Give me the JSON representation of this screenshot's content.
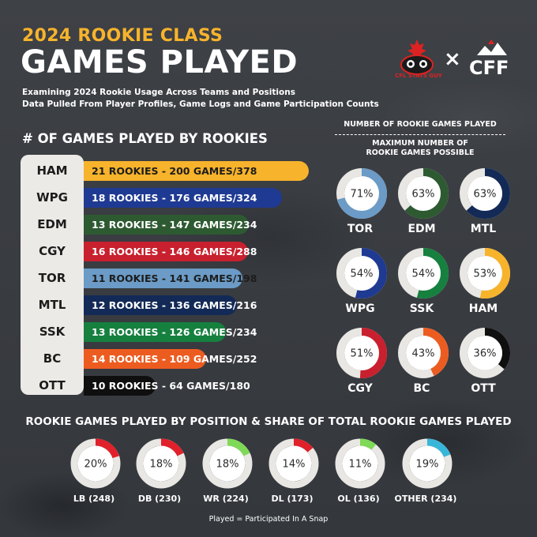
{
  "header": {
    "subtitle": "2024 ROOKIE CLASS",
    "title": "GAMES PLAYED",
    "desc_line1": "Examining 2024 Rookie Usage Across Teams and Positions",
    "desc_line2": "Data Pulled From Player Profiles, Game Logs and Game Participation Counts"
  },
  "logos": {
    "left_text": "CFL STATS GUY",
    "separator": "×",
    "right_text": "CFF"
  },
  "bar_section_title": "# OF GAMES PLAYED BY ROOKIES",
  "right_header": {
    "line1": "NUMBER OF ROOKIE GAMES PLAYED",
    "line2a": "MAXIMUM NUMBER OF",
    "line2b": "ROOKIE GAMES POSSIBLE"
  },
  "position_section_title": "ROOKIE GAMES PLAYED BY POSITION & SHARE OF TOTAL ROOKIE GAMES PLAYED",
  "footnote": "Played = Participated In A Snap",
  "colors": {
    "HAM": "#f7b32b",
    "WPG": "#1f3a93",
    "EDM": "#2e5a32",
    "CGY": "#c8202e",
    "TOR": "#6b9bc6",
    "MTL": "#132a57",
    "SSK": "#16803f",
    "BC": "#ec5c20",
    "OTT": "#0f0f0f",
    "ring_bg": "#e9e7e3",
    "pos_ring_bg": "#e9e7e3"
  },
  "chart_data": [
    {
      "type": "bar",
      "orientation": "horizontal",
      "title": "# OF GAMES PLAYED BY ROOKIES",
      "categories": [
        "HAM",
        "WPG",
        "EDM",
        "CGY",
        "TOR",
        "MTL",
        "SSK",
        "BC",
        "OTT"
      ],
      "values": [
        200,
        176,
        147,
        146,
        141,
        136,
        126,
        109,
        64
      ],
      "bar_labels": [
        "21 ROOKIES - 200 GAMES/378",
        "18 ROOKIES - 176 GAMES/324",
        "13 ROOKIES - 147 GAMES/234",
        "16 ROOKIES - 146 GAMES/288",
        "11 ROOKIES - 141 GAMES/198",
        "12 ROOKIES - 136 GAMES/216",
        "13 ROOKIES - 126 GAMES/234",
        "14 ROOKIES - 109 GAMES/252",
        "10 ROOKIES - 64 GAMES/180"
      ],
      "text_colors": [
        "#1c1c1c",
        "#ffffff",
        "#ffffff",
        "#ffffff",
        "#1c1c1c",
        "#ffffff",
        "#ffffff",
        "#ffffff",
        "#ffffff"
      ]
    },
    {
      "type": "pie",
      "style": "donut",
      "title": "NUMBER OF ROOKIE GAMES PLAYED / MAXIMUM NUMBER OF ROOKIE GAMES POSSIBLE",
      "items": [
        {
          "team": "TOR",
          "pct": 71,
          "label": "71%"
        },
        {
          "team": "EDM",
          "pct": 63,
          "label": "63%"
        },
        {
          "team": "MTL",
          "pct": 63,
          "label": "63%"
        },
        {
          "team": "WPG",
          "pct": 54,
          "label": "54%"
        },
        {
          "team": "SSK",
          "pct": 54,
          "label": "54%"
        },
        {
          "team": "HAM",
          "pct": 53,
          "label": "53%"
        },
        {
          "team": "CGY",
          "pct": 51,
          "label": "51%"
        },
        {
          "team": "BC",
          "pct": 43,
          "label": "43%"
        },
        {
          "team": "OTT",
          "pct": 36,
          "label": "36%"
        }
      ]
    },
    {
      "type": "pie",
      "style": "donut",
      "title": "ROOKIE GAMES PLAYED BY POSITION & SHARE OF TOTAL ROOKIE GAMES PLAYED",
      "items": [
        {
          "position": "LB (248)",
          "pct": 20,
          "label": "20%",
          "color": "#e0202b"
        },
        {
          "position": "DB (230)",
          "pct": 18,
          "label": "18%",
          "color": "#e0202b"
        },
        {
          "position": "WR (224)",
          "pct": 18,
          "label": "18%",
          "color": "#7ed957"
        },
        {
          "position": "DL (173)",
          "pct": 14,
          "label": "14%",
          "color": "#e0202b"
        },
        {
          "position": "OL (136)",
          "pct": 11,
          "label": "11%",
          "color": "#7ed957"
        },
        {
          "position": "OTHER (234)",
          "pct": 19,
          "label": "19%",
          "color": "#38b6d9"
        }
      ]
    }
  ]
}
